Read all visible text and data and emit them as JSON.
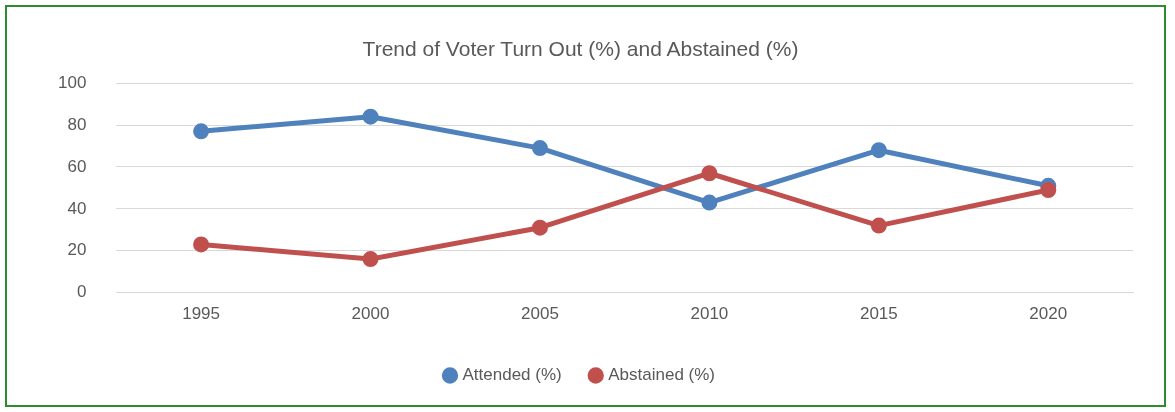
{
  "chart_data": {
    "type": "line",
    "title": "Trend of Voter Turn Out (%) and Abstained (%)",
    "categories": [
      "1995",
      "2000",
      "2005",
      "2010",
      "2015",
      "2020"
    ],
    "series": [
      {
        "name": "Attended (%)",
        "color": "#4f81bd",
        "values": [
          77,
          84,
          69,
          43,
          68,
          51
        ]
      },
      {
        "name": "Abstained (%)",
        "color": "#c0504d",
        "values": [
          23,
          16,
          31,
          57,
          32,
          49
        ]
      }
    ],
    "ylim": [
      0,
      100
    ],
    "yticks": [
      0,
      20,
      40,
      60,
      80,
      100
    ],
    "grid": "y",
    "legend": "bottom",
    "marker": "circle",
    "line_style": "solid"
  }
}
